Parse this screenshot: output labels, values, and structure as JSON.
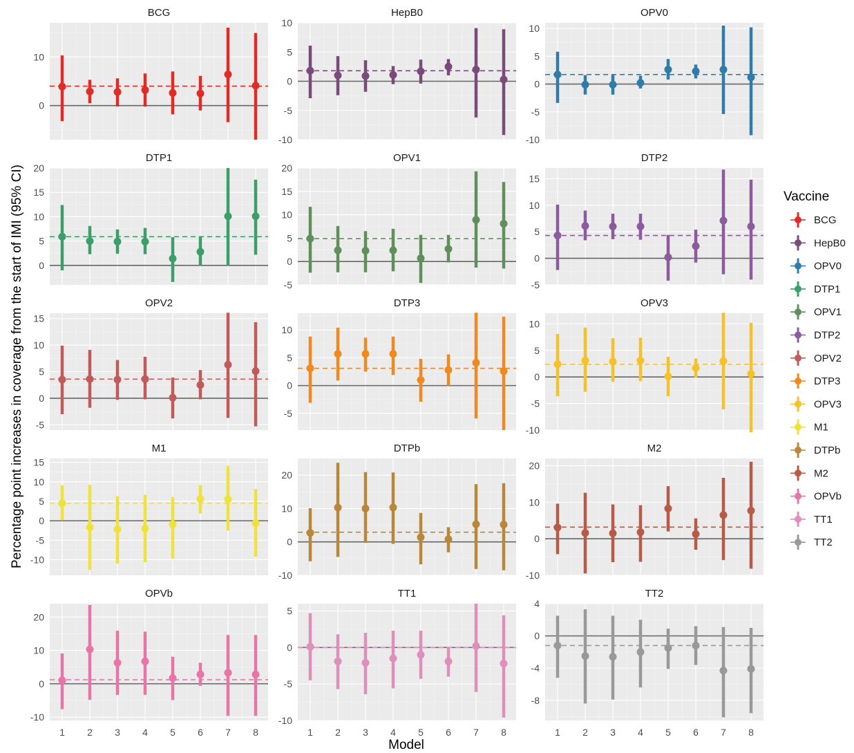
{
  "chart_data": {
    "type": "scatter",
    "subtype": "point-range (estimate with 95% CI) small multiples",
    "xlabel": "Model",
    "ylabel": "Percentage point increases in coverage from the start of IMI (95% CI)",
    "x": [
      1,
      2,
      3,
      4,
      5,
      6,
      7,
      8
    ],
    "x_tick_labels": [
      "1",
      "2",
      "3",
      "4",
      "5",
      "6",
      "7",
      "8"
    ],
    "zero_line_color": "#666666",
    "grid": true,
    "legend": {
      "title": "Vaccine",
      "placement": "right"
    },
    "panels": [
      {
        "name": "BCG",
        "color": "#e02b27",
        "ylim": [
          -7,
          17
        ],
        "yticks": [
          0,
          10
        ],
        "reference": 4.0,
        "estimate": [
          3.9,
          2.9,
          2.8,
          3.2,
          2.6,
          2.5,
          6.4,
          4.1
        ],
        "lower": [
          -3.2,
          0.5,
          -0.2,
          -0.2,
          -1.8,
          -1.0,
          -3.4,
          -7.0
        ],
        "upper": [
          10.3,
          5.3,
          5.6,
          6.6,
          7.0,
          6.1,
          16.0,
          14.9
        ]
      },
      {
        "name": "HepB0",
        "color": "#7a4a7a",
        "ylim": [
          -10,
          10
        ],
        "yticks": [
          -10,
          -5,
          0,
          5,
          10
        ],
        "reference": 1.8,
        "estimate": [
          1.8,
          1.0,
          0.9,
          1.1,
          1.7,
          2.5,
          2.0,
          0.3
        ],
        "lower": [
          -2.9,
          -2.4,
          -1.8,
          -0.5,
          -0.4,
          1.0,
          -6.2,
          -9.2
        ],
        "upper": [
          6.1,
          4.3,
          3.6,
          2.6,
          3.7,
          3.8,
          9.1,
          8.9
        ]
      },
      {
        "name": "OPV0",
        "color": "#2f7cab",
        "ylim": [
          -10,
          11
        ],
        "yticks": [
          -10,
          -5,
          0,
          5,
          10
        ],
        "reference": 1.7,
        "estimate": [
          1.7,
          -0.1,
          -0.1,
          0.2,
          2.6,
          2.3,
          2.6,
          1.2
        ],
        "lower": [
          -3.4,
          -1.9,
          -1.9,
          -0.8,
          0.8,
          1.0,
          -5.4,
          -9.2
        ],
        "upper": [
          5.8,
          1.6,
          1.6,
          1.5,
          4.5,
          3.5,
          10.5,
          10.2
        ]
      },
      {
        "name": "DTP1",
        "color": "#3c9e6a",
        "ylim": [
          -4,
          20
        ],
        "yticks": [
          0,
          5,
          10,
          15,
          20
        ],
        "reference": 5.9,
        "estimate": [
          5.9,
          5.0,
          4.9,
          4.9,
          1.4,
          2.8,
          10.1,
          10.1
        ],
        "lower": [
          -1.0,
          2.3,
          2.4,
          2.3,
          -3.4,
          0.0,
          0.0,
          2.2
        ],
        "upper": [
          12.4,
          8.1,
          7.4,
          7.7,
          5.8,
          5.8,
          20.0,
          17.6
        ]
      },
      {
        "name": "OPV1",
        "color": "#5f8f5a",
        "ylim": [
          -5,
          20
        ],
        "yticks": [
          -5,
          0,
          5,
          10,
          15,
          20
        ],
        "reference": 4.9,
        "estimate": [
          4.9,
          2.4,
          2.3,
          2.4,
          0.7,
          2.7,
          8.9,
          8.1
        ],
        "lower": [
          -2.4,
          -2.3,
          -2.3,
          -2.1,
          -4.6,
          -0.2,
          -1.3,
          -1.5
        ],
        "upper": [
          11.7,
          7.6,
          6.5,
          7.0,
          5.7,
          5.7,
          19.3,
          17.0
        ]
      },
      {
        "name": "DTP2",
        "color": "#8e5a9e",
        "ylim": [
          -5,
          17
        ],
        "yticks": [
          -5,
          0,
          5,
          10,
          15
        ],
        "reference": 4.3,
        "estimate": [
          4.3,
          6.1,
          6.0,
          6.0,
          0.2,
          2.3,
          7.1,
          6.0
        ],
        "lower": [
          -2.2,
          3.4,
          3.6,
          3.5,
          -4.2,
          -0.8,
          -3.0,
          -4.0
        ],
        "upper": [
          10.1,
          9.0,
          8.4,
          8.4,
          4.4,
          5.4,
          16.7,
          14.8
        ]
      },
      {
        "name": "OPV2",
        "color": "#c15a5a",
        "ylim": [
          -6,
          16
        ],
        "yticks": [
          -5,
          0,
          5,
          10,
          15
        ],
        "reference": 3.6,
        "estimate": [
          3.5,
          3.6,
          3.5,
          3.6,
          0.1,
          2.5,
          6.3,
          5.1
        ],
        "lower": [
          -3.0,
          -1.8,
          -0.3,
          -0.2,
          -3.8,
          -0.2,
          -3.7,
          -5.3
        ],
        "upper": [
          9.9,
          9.1,
          7.2,
          7.8,
          3.9,
          5.3,
          16.1,
          14.3
        ]
      },
      {
        "name": "DTP3",
        "color": "#f08a1e",
        "ylim": [
          -8,
          13
        ],
        "yticks": [
          -5,
          0,
          5,
          10
        ],
        "reference": 3.1,
        "estimate": [
          3.1,
          5.7,
          5.7,
          5.7,
          1.0,
          2.8,
          4.1,
          2.6
        ],
        "lower": [
          -3.1,
          0.9,
          2.5,
          1.9,
          -2.9,
          0.0,
          -5.9,
          -8.0
        ],
        "upper": [
          8.8,
          10.4,
          8.6,
          8.8,
          4.8,
          5.6,
          13.1,
          12.4
        ]
      },
      {
        "name": "OPV3",
        "color": "#f5c22a",
        "ylim": [
          -10,
          12
        ],
        "yticks": [
          -10,
          -5,
          0,
          5,
          10
        ],
        "reference": 2.4,
        "estimate": [
          2.4,
          3.1,
          2.9,
          3.1,
          0.1,
          1.7,
          3.0,
          0.6
        ],
        "lower": [
          -3.6,
          -2.8,
          -0.9,
          -0.8,
          -3.6,
          -0.1,
          -6.1,
          -10.4
        ],
        "upper": [
          8.1,
          9.3,
          7.3,
          7.4,
          3.8,
          3.5,
          12.1,
          10.2
        ]
      },
      {
        "name": "M1",
        "color": "#efe23d",
        "ylim": [
          -14,
          16
        ],
        "yticks": [
          -10,
          -5,
          0,
          5,
          10,
          15
        ],
        "reference": 4.5,
        "estimate": [
          4.5,
          -1.7,
          -2.2,
          -2.0,
          -0.9,
          5.6,
          5.5,
          -0.6
        ],
        "lower": [
          0.1,
          -12.6,
          -11.0,
          -10.6,
          -9.7,
          1.9,
          -2.5,
          -9.2
        ],
        "upper": [
          9.1,
          9.2,
          6.3,
          6.7,
          6.1,
          9.2,
          14.1,
          8.2
        ]
      },
      {
        "name": "DTPb",
        "color": "#b9873a",
        "ylim": [
          -10,
          25
        ],
        "yticks": [
          -10,
          0,
          10,
          20
        ],
        "reference": 2.9,
        "estimate": [
          2.7,
          10.3,
          10.0,
          10.3,
          1.4,
          0.8,
          5.3,
          5.2
        ],
        "lower": [
          -5.8,
          -4.5,
          -0.3,
          -0.6,
          -6.7,
          -3.1,
          -8.1,
          -8.5
        ],
        "upper": [
          10.1,
          23.7,
          20.9,
          20.8,
          8.7,
          4.4,
          17.3,
          17.6
        ]
      },
      {
        "name": "M2",
        "color": "#b85a48",
        "ylim": [
          -10,
          22
        ],
        "yticks": [
          -10,
          0,
          10,
          20
        ],
        "reference": 3.2,
        "estimate": [
          3.1,
          1.6,
          1.5,
          1.8,
          8.3,
          1.3,
          6.5,
          7.7
        ],
        "lower": [
          -4.2,
          -9.5,
          -6.4,
          -6.3,
          2.0,
          -3.0,
          -5.8,
          -8.2
        ],
        "upper": [
          9.6,
          12.6,
          9.4,
          9.2,
          14.4,
          5.6,
          16.7,
          21.1
        ]
      },
      {
        "name": "OPVb",
        "color": "#e875a8",
        "ylim": [
          -11,
          24
        ],
        "yticks": [
          -10,
          0,
          10,
          20
        ],
        "reference": 1.2,
        "estimate": [
          1.0,
          10.3,
          6.3,
          6.7,
          1.7,
          2.8,
          3.3,
          2.8
        ],
        "lower": [
          -7.6,
          -4.8,
          -3.3,
          -3.3,
          -4.9,
          -0.6,
          -9.6,
          -9.6
        ],
        "upper": [
          9.1,
          23.6,
          15.9,
          15.6,
          8.1,
          6.3,
          14.6,
          14.6
        ]
      },
      {
        "name": "TT1",
        "color": "#de8fbb",
        "ylim": [
          -10,
          6
        ],
        "yticks": [
          -10,
          -5,
          0,
          5
        ],
        "reference": 0.0,
        "estimate": [
          0.1,
          -1.9,
          -2.1,
          -1.5,
          -1.0,
          -1.9,
          0.2,
          -2.2
        ],
        "lower": [
          -4.5,
          -5.7,
          -6.4,
          -5.6,
          -4.3,
          -4.0,
          -6.1,
          -9.6
        ],
        "upper": [
          4.7,
          1.8,
          2.0,
          2.3,
          2.3,
          0.1,
          6.0,
          4.4
        ]
      },
      {
        "name": "TT2",
        "color": "#999999",
        "ylim": [
          -10.5,
          4
        ],
        "yticks": [
          -8,
          -4,
          0,
          4
        ],
        "reference": -1.2,
        "estimate": [
          -1.2,
          -2.5,
          -2.6,
          -2.0,
          -1.5,
          -1.2,
          -4.3,
          -4.1
        ],
        "lower": [
          -5.2,
          -8.4,
          -7.9,
          -6.4,
          -4.1,
          -3.6,
          -10.1,
          -9.6
        ],
        "upper": [
          2.5,
          3.3,
          2.5,
          2.0,
          0.9,
          1.2,
          1.1,
          1.0
        ]
      }
    ]
  }
}
